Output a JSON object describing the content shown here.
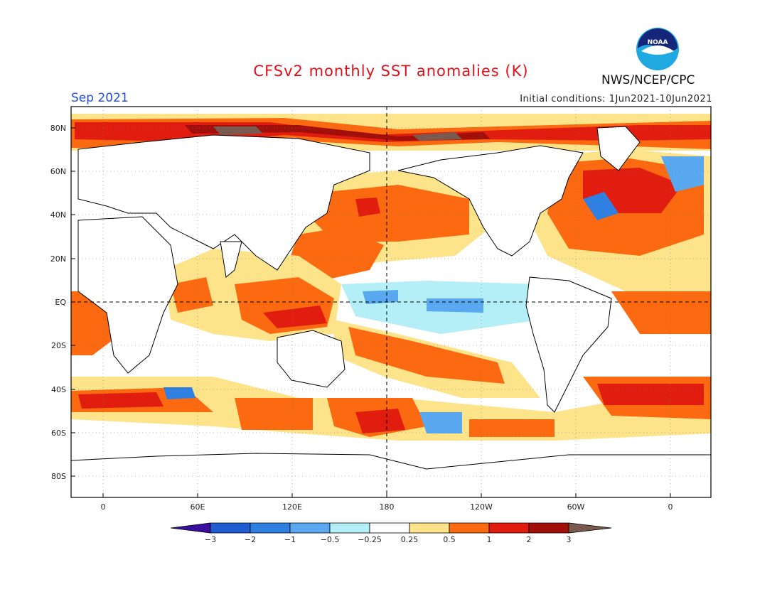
{
  "header": {
    "title": "CFSv2 monthly SST anomalies (K)",
    "month": "Sep 2021",
    "initial_conditions": "Initial conditions: 1Jun2021-10Jun2021",
    "agency": "NWS/NCEP/CPC",
    "logo_text": "NOAA"
  },
  "axes": {
    "lat_ticks": [
      "80N",
      "60N",
      "40N",
      "20N",
      "EQ",
      "20S",
      "40S",
      "60S",
      "80S"
    ],
    "lon_ticks": [
      "0",
      "60E",
      "120E",
      "180",
      "120W",
      "60W",
      "0"
    ]
  },
  "colorbar": {
    "labels": [
      "−3",
      "−2",
      "−1",
      "−0.5",
      "−0.25",
      "0.25",
      "0.5",
      "1",
      "2",
      "3"
    ],
    "colors": [
      "#3a0e9e",
      "#1f5ccf",
      "#2f80e0",
      "#5aa8ef",
      "#b4eef6",
      "#ffffff",
      "#fde38a",
      "#fb6a10",
      "#e11d10",
      "#a20f0a",
      "#7a5a4e"
    ]
  },
  "palette": {
    "land": "#ffffff",
    "ocean_neutral": "#ffffff",
    "light_warm": "#fde38a",
    "warm": "#fb6a10",
    "hot": "#e11d10",
    "very_hot": "#a20f0a",
    "extreme": "#7a5a4e",
    "light_cool": "#b4eef6",
    "cool": "#5aa8ef",
    "cold": "#2f80e0"
  }
}
